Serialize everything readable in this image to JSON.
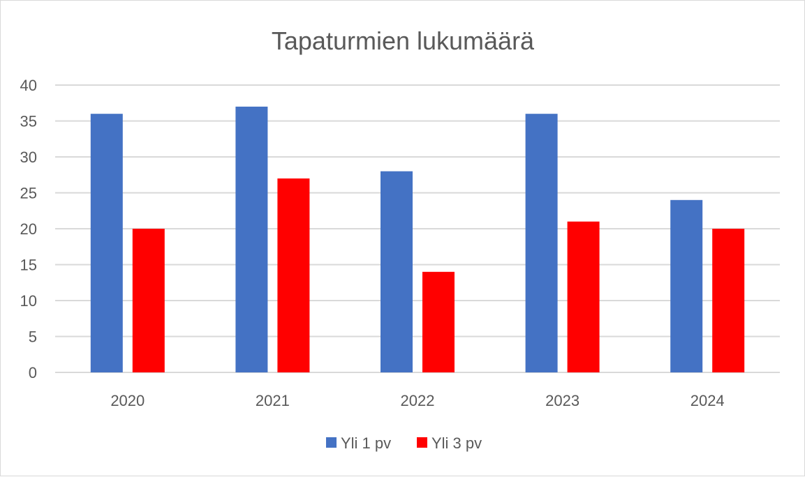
{
  "chart_data": {
    "type": "bar",
    "title": "Tapaturmien lukumäärä",
    "categories": [
      "2020",
      "2021",
      "2022",
      "2023",
      "2024"
    ],
    "series": [
      {
        "name": "Yli 1 pv",
        "color": "#4472c4",
        "values": [
          36,
          37,
          28,
          36,
          24
        ]
      },
      {
        "name": "Yli 3 pv",
        "color": "#ff0000",
        "values": [
          20,
          27,
          14,
          21,
          20
        ]
      }
    ],
    "ylim": [
      0,
      40
    ],
    "yticks": [
      "0",
      "5",
      "10",
      "15",
      "20",
      "25",
      "30",
      "35",
      "40"
    ],
    "xlabel": "",
    "ylabel": "",
    "grid": true,
    "legend_position": "bottom"
  }
}
